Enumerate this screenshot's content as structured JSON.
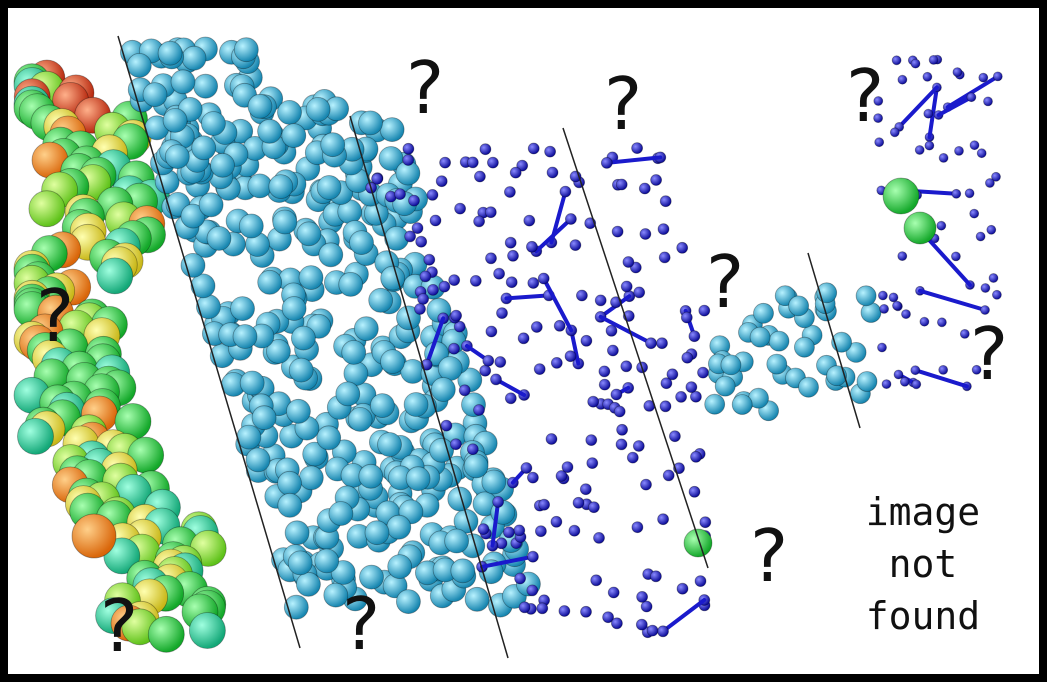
{
  "placeholder": {
    "question_mark": "?",
    "caption_lines": [
      "image",
      "not",
      "found"
    ]
  },
  "colors": {
    "border": "#000000",
    "background": "#ffffff",
    "rainbow_spheres": [
      "#d93a1a",
      "#f28c1a",
      "#e6e633",
      "#9be633",
      "#33d94d",
      "#1ac98c"
    ],
    "cyan_spheres": "#2bb6dc",
    "blue_sticks": "#1a1acc"
  },
  "panels": [
    "rainbow-spacefill",
    "cyan-spacefill",
    "blue-ball-and-stick",
    "mixed-tail"
  ]
}
